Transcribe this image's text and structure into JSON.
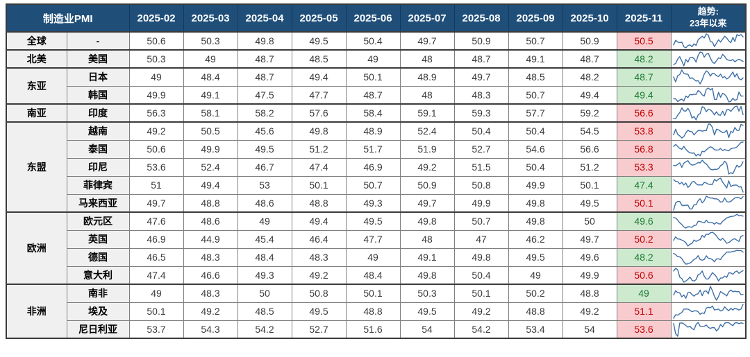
{
  "table": {
    "title": "制造业PMI",
    "months": [
      "2025-02",
      "2025-03",
      "2025-04",
      "2025-05",
      "2025-06",
      "2025-07",
      "2025-08",
      "2025-09",
      "2025-10",
      "2025-11"
    ],
    "trend_header": {
      "line1": "趋势:",
      "line2": "23年以来"
    },
    "colors": {
      "header_bg": "#1F4E79",
      "header_text": "#FFFFFF",
      "red_bg": "#F8CBCE",
      "red_text": "#C00000",
      "green_bg": "#CDEACE",
      "green_text": "#1E7B34",
      "sparkline": "#3E6FA6",
      "label_bg": "#F0F0F0"
    },
    "rows": [
      {
        "region": "全球",
        "rowspan": 1,
        "country": "-",
        "state": "red",
        "values": [
          50.6,
          50.3,
          49.8,
          49.5,
          50.4,
          49.7,
          50.9,
          50.7,
          50.9,
          50.5
        ],
        "spark": [
          49.1,
          49.9,
          49.6,
          49.5,
          49.6,
          48.8,
          48.6,
          49,
          49.1,
          48.8,
          49.3,
          49,
          50,
          50.3,
          50.6,
          50.3,
          51,
          50.8,
          49.7,
          49.6,
          48.8,
          49.4,
          50,
          49.6,
          50.1,
          50.6,
          50.3,
          49.8,
          49.5,
          50.4,
          49.7,
          50.9,
          50.7,
          50.9,
          50.5
        ]
      },
      {
        "region": "北美",
        "rowspan": 1,
        "country": "美国",
        "state": "green",
        "values": [
          50.3,
          49,
          48.7,
          48.5,
          49,
          48,
          48.7,
          49.1,
          48.7,
          48.2
        ],
        "spark": [
          46.9,
          47.3,
          49.2,
          50.2,
          48.4,
          46.3,
          49,
          47.9,
          49.8,
          50,
          49.4,
          47.9,
          50.7,
          52.2,
          51.9,
          50,
          51.3,
          51.6,
          49.6,
          47.9,
          47.3,
          48.5,
          49.7,
          49.4,
          51.2,
          50.3,
          49,
          48.7,
          48.5,
          49,
          48,
          48.7,
          49.1,
          48.7,
          48.2
        ]
      },
      {
        "region": "东亚",
        "rowspan": 2,
        "country": "日本",
        "state": "green",
        "values": [
          49,
          48.4,
          48.7,
          49.4,
          50.1,
          48.9,
          49.7,
          48.5,
          48.2,
          48.7
        ],
        "spark": [
          48.9,
          47.7,
          49.2,
          49.5,
          50.6,
          49.8,
          49.6,
          49.6,
          48.5,
          48.7,
          48.3,
          47.9,
          48,
          47.2,
          48.2,
          49.6,
          50.4,
          50,
          49.1,
          49.8,
          49.7,
          49.2,
          49,
          49.6,
          48.7,
          49,
          48.4,
          48.7,
          49.4,
          50.1,
          48.9,
          49.7,
          48.5,
          48.2,
          48.7
        ]
      },
      {
        "country": "韩国",
        "state": "green",
        "values": [
          49.9,
          49.1,
          47.5,
          47.7,
          48.7,
          48,
          48.3,
          50.7,
          49.4,
          49.4
        ],
        "spark": [
          48.5,
          48.5,
          47.6,
          48.1,
          48.4,
          47.8,
          49.4,
          48.9,
          49.9,
          49.8,
          50,
          49.9,
          51.2,
          50.7,
          49.8,
          49.4,
          51.6,
          52,
          51.4,
          51.9,
          48.3,
          48.3,
          50.6,
          49,
          50.3,
          49.9,
          49.1,
          47.5,
          47.7,
          48.7,
          48,
          48.3,
          50.7,
          49.4,
          49.4
        ]
      },
      {
        "region": "南亚",
        "rowspan": 1,
        "country": "印度",
        "state": "red",
        "values": [
          56.3,
          58.1,
          58.2,
          57.6,
          58.4,
          59.1,
          59.3,
          57.7,
          59.2,
          56.6
        ],
        "spark": [
          55.4,
          55.3,
          56.4,
          57.2,
          58.7,
          57.8,
          57.7,
          58.6,
          57.5,
          55.5,
          56,
          54.9,
          56.5,
          56.9,
          59.1,
          58.8,
          57.5,
          58.3,
          58.1,
          57.5,
          56.5,
          57.5,
          56.5,
          56.4,
          57.7,
          56.3,
          58.1,
          58.2,
          57.6,
          58.4,
          59.1,
          59.3,
          57.7,
          59.2,
          56.6
        ]
      },
      {
        "region": "东盟",
        "rowspan": 5,
        "country": "越南",
        "state": "red",
        "values": [
          49.2,
          50.5,
          45.6,
          49.8,
          48.9,
          52.4,
          50.4,
          50.4,
          54.5,
          53.8
        ],
        "spark": [
          47.4,
          51.2,
          47.7,
          46.7,
          45.3,
          46.2,
          48.7,
          50.5,
          49.7,
          49.6,
          47.3,
          48.9,
          50.3,
          50.4,
          49.9,
          50.3,
          50.3,
          54.7,
          54.7,
          52.4,
          47.3,
          51.2,
          50.8,
          49.8,
          48.9,
          49.2,
          50.5,
          45.6,
          49.8,
          48.9,
          52.4,
          50.4,
          50.4,
          54.5,
          53.8
        ]
      },
      {
        "country": "泰国",
        "state": "red",
        "values": [
          50.6,
          49.9,
          49.5,
          51.2,
          51.7,
          51.9,
          52.7,
          54.6,
          56.6,
          56.8
        ],
        "spark": [
          53.2,
          54.8,
          53.1,
          51.5,
          50.8,
          53.2,
          50.7,
          48.9,
          47.8,
          47.5,
          47.6,
          45.1,
          46.7,
          45.3,
          49.1,
          48.6,
          50.3,
          51.7,
          52.8,
          52.2,
          50.4,
          50,
          50.2,
          51.4,
          49.6,
          50.6,
          49.9,
          49.5,
          51.2,
          51.7,
          51.9,
          52.7,
          54.6,
          56.6,
          56.8
        ]
      },
      {
        "country": "印尼",
        "state": "red",
        "values": [
          53.6,
          52.4,
          46.7,
          47.4,
          46.9,
          49.2,
          51.5,
          50.4,
          51.2,
          53.3
        ],
        "spark": [
          51.3,
          51.2,
          51.9,
          52.7,
          50.3,
          52.5,
          53.3,
          53.9,
          52.3,
          51.5,
          51.7,
          52.2,
          52.9,
          52.7,
          54.2,
          52.9,
          52.1,
          50.7,
          49.3,
          48.9,
          49.2,
          49.2,
          49.6,
          51.2,
          51.9,
          53.6,
          52.4,
          46.7,
          47.4,
          46.9,
          49.2,
          51.5,
          50.4,
          51.2,
          53.3
        ]
      },
      {
        "country": "菲律宾",
        "state": "green",
        "values": [
          51,
          49.4,
          53,
          50.1,
          50.7,
          50.9,
          50.8,
          49.9,
          50.1,
          47.4
        ],
        "spark": [
          53.5,
          52.7,
          52.5,
          51.4,
          52.2,
          50.9,
          51.9,
          49.7,
          50.6,
          52.4,
          52.7,
          51.5,
          50.9,
          51,
          50.9,
          52.2,
          51.9,
          51.3,
          51.2,
          51.2,
          53.7,
          52.9,
          53.8,
          54.3,
          52.3,
          51,
          49.4,
          53,
          50.1,
          50.7,
          50.9,
          50.8,
          49.9,
          50.1,
          47.4
        ]
      },
      {
        "country": "马来西亚",
        "state": "red",
        "values": [
          49.7,
          48.8,
          48.6,
          48.8,
          49.3,
          49.7,
          49.9,
          49.8,
          49.5,
          50.1
        ],
        "spark": [
          46.5,
          48.4,
          48.8,
          48.8,
          47.8,
          47.7,
          47.8,
          47.8,
          46.8,
          46.8,
          47.9,
          47.9,
          49,
          49.5,
          48.4,
          49,
          50.2,
          49.9,
          49.7,
          49.7,
          49.5,
          49.5,
          49.2,
          48.6,
          48.7,
          49.7,
          48.8,
          48.6,
          48.8,
          49.3,
          49.7,
          49.9,
          49.8,
          49.5,
          50.1
        ]
      },
      {
        "region": "欧洲",
        "rowspan": 4,
        "country": "欧元区",
        "state": "green",
        "values": [
          47.6,
          48.6,
          49,
          49.4,
          49.5,
          49.8,
          50.7,
          49.8,
          50,
          49.6
        ],
        "spark": [
          48.8,
          48.5,
          47.3,
          45.8,
          44.8,
          43.4,
          42.7,
          43.5,
          43.4,
          43.1,
          44.2,
          44.4,
          46.6,
          46.5,
          46.1,
          45.7,
          47.3,
          45.8,
          45.8,
          45.8,
          45,
          46,
          45.2,
          45.1,
          46.6,
          47.6,
          48.6,
          49,
          49.4,
          49.5,
          49.8,
          50.7,
          49.8,
          50,
          49.6
        ]
      },
      {
        "country": "英国",
        "state": "red",
        "values": [
          46.9,
          44.9,
          45.4,
          46.4,
          47.7,
          48,
          47,
          46.2,
          49.7,
          50.2
        ],
        "spark": [
          47,
          49.3,
          47.9,
          47.8,
          47.1,
          46.5,
          45.3,
          43,
          44.3,
          44.8,
          47.2,
          46.2,
          47,
          47.5,
          50.3,
          49.1,
          51.2,
          50.9,
          52.1,
          52.5,
          51.5,
          49.9,
          48,
          47,
          48.3,
          46.9,
          44.9,
          45.4,
          46.4,
          47.7,
          48,
          47,
          46.2,
          49.7,
          50.2
        ]
      },
      {
        "country": "德国",
        "state": "green",
        "values": [
          46.5,
          48.3,
          48.4,
          48.3,
          49,
          49.1,
          49.8,
          49.5,
          49.6,
          48.2
        ],
        "spark": [
          47.3,
          46.3,
          44.7,
          44.5,
          43.2,
          40.6,
          38.8,
          39.1,
          39.6,
          40.8,
          42.6,
          43.3,
          45.5,
          42.5,
          41.9,
          42.5,
          45.4,
          43.5,
          43.2,
          42.4,
          40.6,
          43,
          43,
          42.5,
          45,
          46.5,
          48.3,
          48.4,
          48.3,
          49,
          49.1,
          49.8,
          49.5,
          49.6,
          48.2
        ]
      },
      {
        "country": "意大利",
        "state": "red",
        "values": [
          47.4,
          46.6,
          49.3,
          49.2,
          48.4,
          49.8,
          50.4,
          49,
          49.9,
          50.6
        ],
        "spark": [
          50.4,
          52,
          51.1,
          46.8,
          45.9,
          43.8,
          44.5,
          45.4,
          46.8,
          44.9,
          44.4,
          45.3,
          48.2,
          48.7,
          50.4,
          47.3,
          45.6,
          45.7,
          47.4,
          49.4,
          48.3,
          46.9,
          44.5,
          46.2,
          46.3,
          47.4,
          46.6,
          49.3,
          49.2,
          48.4,
          49.8,
          50.4,
          49,
          49.9,
          50.6
        ]
      },
      {
        "region": "非洲",
        "rowspan": 3,
        "country": "南非",
        "state": "green",
        "values": [
          49,
          48.3,
          50,
          50.8,
          50.1,
          50.3,
          50.1,
          50.2,
          48.8,
          49
        ],
        "spark": [
          48.7,
          50.5,
          49.7,
          49.6,
          47.9,
          48.7,
          47.3,
          49.7,
          49.9,
          48.9,
          48.2,
          49,
          49.2,
          50.8,
          48.4,
          50.3,
          50.4,
          49.2,
          52.4,
          50.5,
          48.1,
          46.5,
          48.1,
          50.2,
          49.5,
          49,
          48.3,
          50,
          50.8,
          50.1,
          50.3,
          50.1,
          50.2,
          48.8,
          49
        ]
      },
      {
        "country": "埃及",
        "state": "red",
        "values": [
          50.1,
          49.2,
          48.5,
          49.5,
          48.8,
          49.5,
          49.2,
          48.8,
          49.2,
          51.1
        ],
        "spark": [
          45.5,
          46.9,
          46.7,
          47.3,
          47.8,
          49.1,
          49.2,
          49.2,
          48.7,
          48.1,
          48.4,
          48.5,
          48.1,
          47.1,
          47.6,
          47.4,
          49.6,
          49.9,
          49.7,
          50.4,
          48.8,
          49,
          49.2,
          48.4,
          48.7,
          50.1,
          49.2,
          48.5,
          49.5,
          48.8,
          49.5,
          49.2,
          48.8,
          49.2,
          51.1
        ]
      },
      {
        "country": "尼日利亚",
        "state": "red",
        "values": [
          53.7,
          54.3,
          54.2,
          52.7,
          51.6,
          54,
          54.2,
          53.4,
          54,
          53.6
        ],
        "spark": [
          53.5,
          44.5,
          42.3,
          53.8,
          54,
          53.2,
          51.7,
          50.2,
          51.1,
          49.1,
          48,
          52.7,
          54.5,
          51,
          51,
          51.1,
          52.1,
          50.1,
          49.2,
          49.9,
          49.8,
          46.9,
          48.9,
          52.7,
          50.5,
          53.7,
          54.3,
          54.2,
          52.7,
          51.6,
          54,
          54.2,
          53.4,
          54,
          53.6
        ]
      }
    ]
  }
}
